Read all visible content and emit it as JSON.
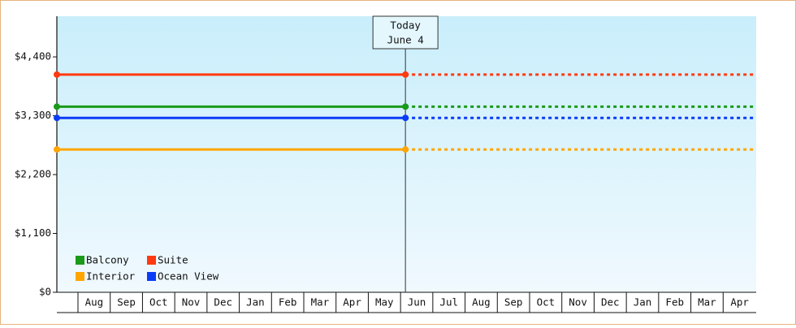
{
  "chart_data": {
    "type": "line",
    "annotation": [
      "Today",
      "June 4"
    ],
    "categories": [
      null,
      "Aug",
      "Sep",
      "Oct",
      "Nov",
      "Dec",
      "Jan",
      "Feb",
      "Mar",
      "Apr",
      "May",
      "Jun",
      "Jul",
      "Aug",
      "Sep",
      "Oct",
      "Nov",
      "Dec",
      "Jan",
      "Feb",
      "Mar",
      "Apr"
    ],
    "series": [
      {
        "name": "Balcony",
        "color": "#1a9a1a",
        "value": 3470
      },
      {
        "name": "Suite",
        "color": "#ff3a10",
        "value": 4070
      },
      {
        "name": "Interior",
        "color": "#ffa500",
        "value": 2670
      },
      {
        "name": "Ocean View",
        "color": "#0a3cf5",
        "value": 3260
      }
    ],
    "ylim": [
      0,
      5160
    ],
    "yticks": [
      {
        "value": 0,
        "label": "$0"
      },
      {
        "value": 1100,
        "label": "$1,100"
      },
      {
        "value": 2200,
        "label": "$2,200"
      },
      {
        "value": 3300,
        "label": "$3,300"
      },
      {
        "value": 4400,
        "label": "$4,400"
      }
    ]
  }
}
